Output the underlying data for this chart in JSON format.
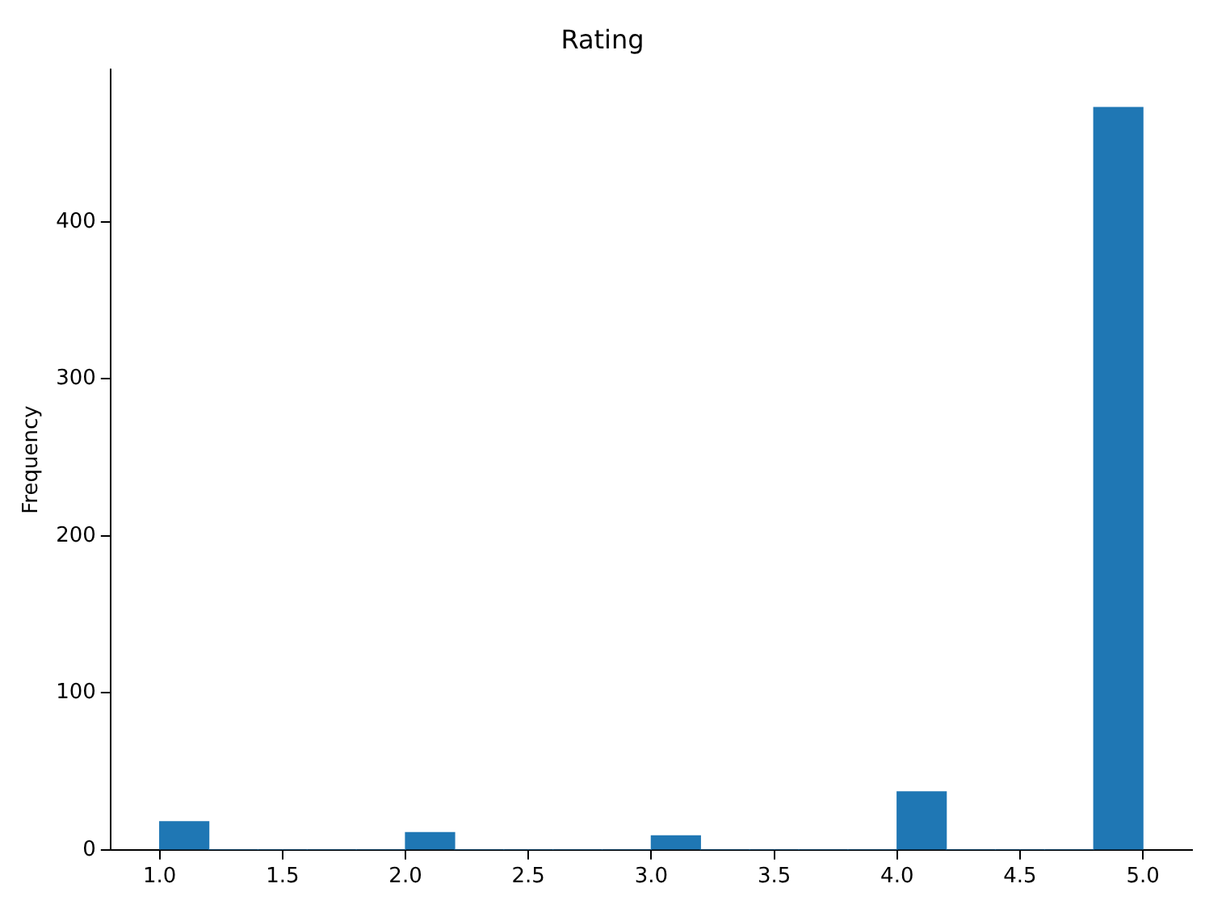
{
  "chart_data": {
    "type": "histogram",
    "title": "Rating",
    "ylabel": "Frequency",
    "bins": [
      1.0,
      1.2,
      1.4,
      1.6,
      1.8,
      2.0,
      2.2,
      2.4,
      2.6,
      2.8,
      3.0,
      3.2,
      3.4,
      3.6,
      3.8,
      4.0,
      4.2,
      4.4,
      4.6,
      4.8,
      5.0
    ],
    "values": [
      18,
      0,
      0,
      0,
      0,
      11,
      0,
      0,
      0,
      0,
      9,
      0,
      0,
      0,
      0,
      37,
      0,
      0,
      0,
      473
    ],
    "color": "#1f77b4",
    "xlim": [
      0.8,
      5.2
    ],
    "xticks": [
      {
        "value": 1.0,
        "label": "1.0"
      },
      {
        "value": 1.5,
        "label": "1.5"
      },
      {
        "value": 2.0,
        "label": "2.0"
      },
      {
        "value": 2.5,
        "label": "2.5"
      },
      {
        "value": 3.0,
        "label": "3.0"
      },
      {
        "value": 3.5,
        "label": "3.5"
      },
      {
        "value": 4.0,
        "label": "4.0"
      },
      {
        "value": 4.5,
        "label": "4.5"
      },
      {
        "value": 5.0,
        "label": "5.0"
      }
    ],
    "ylim": [
      0,
      497
    ],
    "yticks": [
      0,
      100,
      200,
      300,
      400
    ],
    "grid": false,
    "legend": false
  }
}
